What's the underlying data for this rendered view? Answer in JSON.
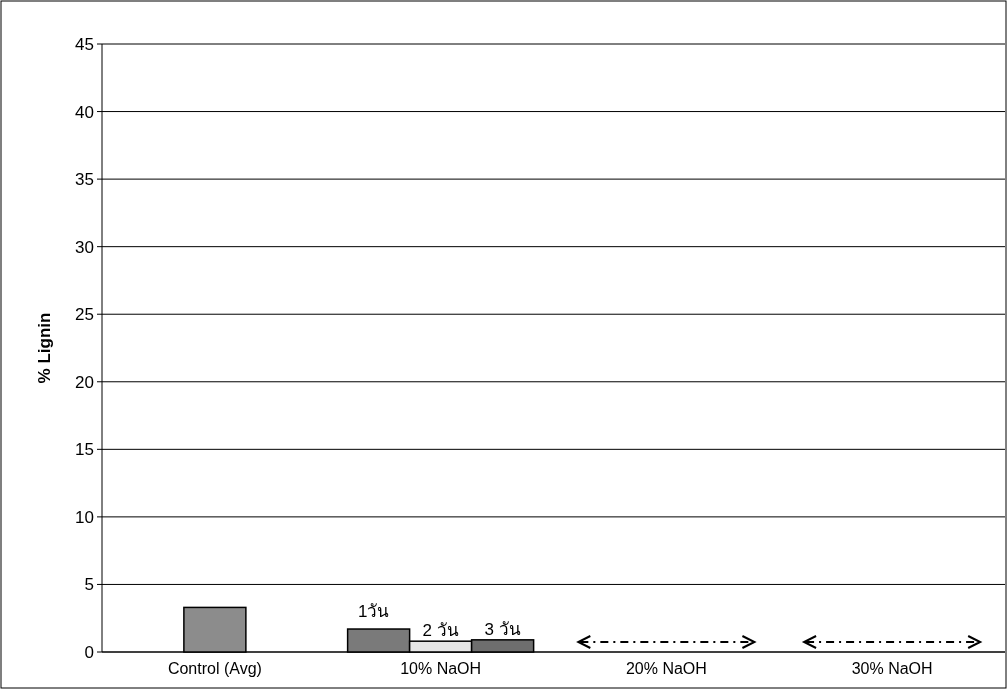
{
  "chart_data": {
    "type": "bar",
    "ylabel": "% Lignin",
    "categories": [
      "Control (Avg)",
      "10% NaOH",
      "20% NaOH",
      "30% NaOH"
    ],
    "series": [
      {
        "color": "#8c8c8c",
        "values": [
          3.3,
          null,
          null,
          null
        ]
      },
      {
        "name": "1วัน",
        "color": "#7a7a7a",
        "values": [
          null,
          1.7,
          null,
          null
        ]
      },
      {
        "name": "2 วัน",
        "color": "#e6e6e6",
        "values": [
          null,
          0.8,
          null,
          null
        ]
      },
      {
        "name": "3 วัน",
        "color": "#6e6e6e",
        "values": [
          null,
          0.9,
          null,
          null
        ]
      }
    ],
    "ylim": [
      0,
      45
    ],
    "yticks": [
      0,
      5,
      10,
      15,
      20,
      25,
      30,
      35,
      40,
      45
    ],
    "grid": "y"
  }
}
